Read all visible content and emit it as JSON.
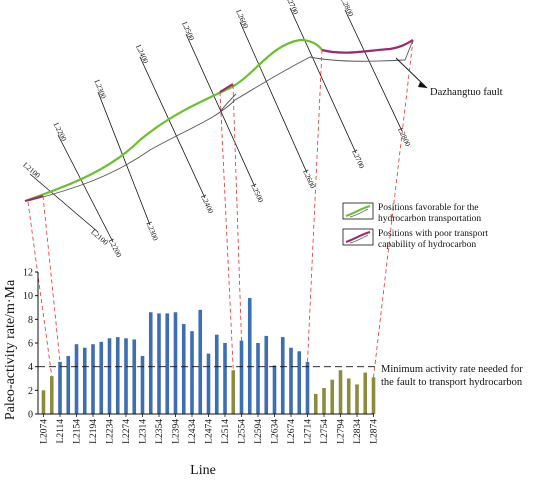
{
  "fault_map": {
    "fault_label": "Dazhangtuo fault",
    "seismic_lines": [
      {
        "label": "L2100",
        "far_label": "L2100"
      },
      {
        "label": "L2200",
        "far_label": "L2200"
      },
      {
        "label": "L2300",
        "far_label": "L2300"
      },
      {
        "label": "L2400",
        "far_label": "L2400"
      },
      {
        "label": "L2500",
        "far_label": "L2500"
      },
      {
        "label": "L2600",
        "far_label": "L2600"
      },
      {
        "label": "L2700",
        "far_label": "L2700"
      },
      {
        "label": "L2800",
        "far_label": "L2800"
      }
    ]
  },
  "legend": {
    "favorable": {
      "line1": "Positions favorable for the",
      "line2": "hydrocarbon transportation",
      "color": "#6cbf2e"
    },
    "poor": {
      "line1": "Positions with poor transport",
      "line2": "capability of hydrocarbon",
      "color": "#9b2a6e"
    }
  },
  "chart_data": {
    "type": "bar",
    "ylabel": "Paleo-activity rate/m·Ma",
    "xlabel": "Line",
    "ylim": [
      0,
      12
    ],
    "yticks": [
      "0",
      "2",
      "4",
      "6",
      "8",
      "10",
      "12"
    ],
    "threshold": {
      "value": 4,
      "label_line1": "Minimum activity rate needed for",
      "label_line2": "the fault to transport hydrocarbon"
    },
    "colors": {
      "above": "#3d6eb4",
      "below": "#8c8c3c"
    },
    "x_tick_labels": [
      "L2074",
      "L2114",
      "L2154",
      "L2194",
      "L2234",
      "L2274",
      "L2314",
      "L2354",
      "L2394",
      "L2434",
      "L2474",
      "L2514",
      "L2554",
      "L2594",
      "L2634",
      "L2674",
      "L2714",
      "L2754",
      "L2794",
      "L2834",
      "L2874"
    ],
    "values": [
      2.0,
      3.2,
      4.4,
      4.9,
      5.9,
      5.6,
      5.9,
      6.1,
      6.4,
      6.5,
      6.4,
      6.3,
      4.9,
      8.6,
      8.5,
      8.5,
      8.6,
      7.6,
      7.0,
      8.8,
      5.1,
      6.7,
      6.0,
      3.7,
      6.2,
      9.8,
      6.0,
      6.6,
      4.1,
      6.5,
      5.6,
      5.3,
      4.4,
      1.7,
      2.2,
      2.9,
      3.7,
      3.0,
      2.5,
      3.5,
      3.1
    ]
  }
}
